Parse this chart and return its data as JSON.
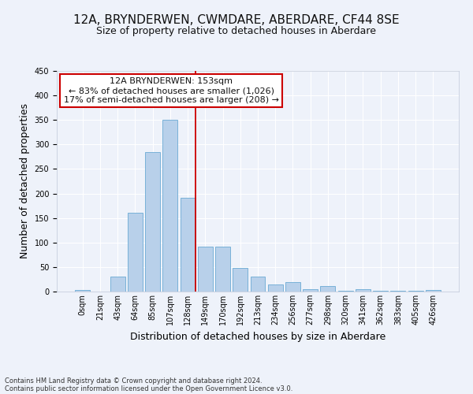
{
  "title": "12A, BRYNDERWEN, CWMDARE, ABERDARE, CF44 8SE",
  "subtitle": "Size of property relative to detached houses in Aberdare",
  "xlabel": "Distribution of detached houses by size in Aberdare",
  "ylabel": "Number of detached properties",
  "footnote1": "Contains HM Land Registry data © Crown copyright and database right 2024.",
  "footnote2": "Contains public sector information licensed under the Open Government Licence v3.0.",
  "bar_labels": [
    "0sqm",
    "21sqm",
    "43sqm",
    "64sqm",
    "85sqm",
    "107sqm",
    "128sqm",
    "149sqm",
    "170sqm",
    "192sqm",
    "213sqm",
    "234sqm",
    "256sqm",
    "277sqm",
    "298sqm",
    "320sqm",
    "341sqm",
    "362sqm",
    "383sqm",
    "405sqm",
    "426sqm"
  ],
  "bar_values": [
    3,
    0,
    30,
    160,
    285,
    350,
    192,
    91,
    91,
    49,
    30,
    15,
    19,
    5,
    11,
    2,
    5,
    1,
    1,
    1,
    4
  ],
  "bar_color": "#b8d0ea",
  "bar_edge_color": "#6aaad4",
  "vline_color": "#cc0000",
  "annotation_title": "12A BRYNDERWEN: 153sqm",
  "annotation_line1": "← 83% of detached houses are smaller (1,026)",
  "annotation_line2": "17% of semi-detached houses are larger (208) →",
  "annotation_box_color": "#cc0000",
  "ylim": [
    0,
    450
  ],
  "background_color": "#eef2fa",
  "grid_color": "#ffffff",
  "title_fontsize": 11,
  "subtitle_fontsize": 9,
  "axis_label_fontsize": 9,
  "tick_fontsize": 7,
  "annotation_fontsize": 8,
  "footnote_fontsize": 6
}
